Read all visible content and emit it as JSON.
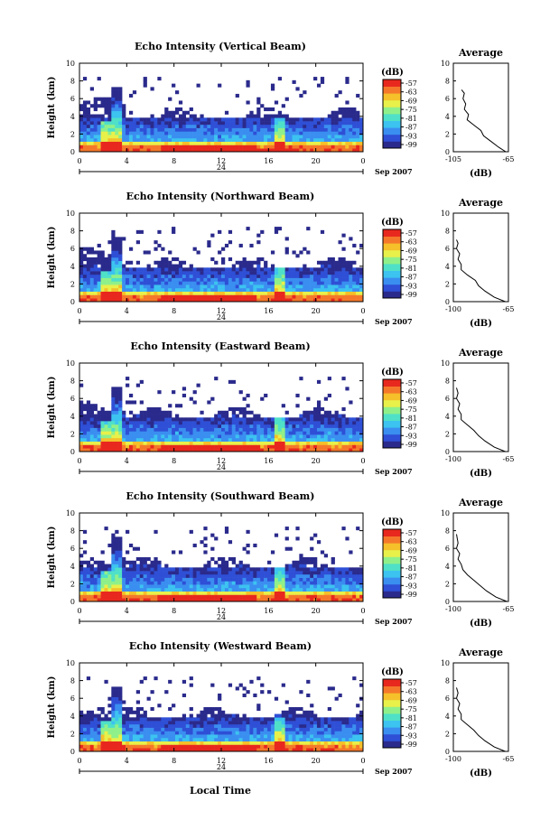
{
  "figure": {
    "xlabel": "Local Time",
    "date_label": "Sep 2007",
    "day_label": "24",
    "ylabel": "Height (km)",
    "unit_label": "(dB)",
    "avg_title": "Average",
    "avg_xlabel": "(dB)"
  },
  "colors": {
    "scale": [
      "#2a2a8c",
      "#2e4fd6",
      "#3a8ef0",
      "#3cc3f0",
      "#4fe0c8",
      "#8ff08a",
      "#e8f04a",
      "#f5c02a",
      "#f5782a",
      "#e8281e"
    ]
  },
  "chart_data": [
    {
      "type": "heatmap",
      "title": "Echo Intensity (Vertical Beam)",
      "x_ticks": [
        "0",
        "4",
        "8",
        "12",
        "16",
        "20",
        "0"
      ],
      "y_ticks": [
        "0",
        "2",
        "4",
        "6",
        "8",
        "10"
      ],
      "xlim": [
        0,
        24
      ],
      "ylim": [
        0,
        10
      ],
      "colorbar_ticks": [
        "-57",
        "-63",
        "-69",
        "-75",
        "-81",
        "-87",
        "-93",
        "-99"
      ],
      "average": {
        "title": "Average",
        "x_ticks": [
          "-105",
          "-65"
        ],
        "y_ticks": [
          "0",
          "2",
          "4",
          "6",
          "8",
          "10"
        ],
        "xlim": [
          -105,
          -65
        ],
        "profile": [
          [
            -67,
            0
          ],
          [
            -72,
            0.5
          ],
          [
            -78,
            1.2
          ],
          [
            -83,
            1.8
          ],
          [
            -85,
            2.4
          ],
          [
            -90,
            3.0
          ],
          [
            -95,
            3.6
          ],
          [
            -94,
            4.2
          ],
          [
            -97,
            4.8
          ],
          [
            -96,
            5.4
          ],
          [
            -98,
            6.0
          ],
          [
            -97,
            6.6
          ],
          [
            -99,
            7.0
          ]
        ]
      }
    },
    {
      "type": "heatmap",
      "title": "Echo Intensity (Northward Beam)",
      "x_ticks": [
        "0",
        "4",
        "8",
        "12",
        "16",
        "20",
        "0"
      ],
      "y_ticks": [
        "0",
        "2",
        "4",
        "6",
        "8",
        "10"
      ],
      "xlim": [
        0,
        24
      ],
      "ylim": [
        0,
        10
      ],
      "colorbar_ticks": [
        "-57",
        "-63",
        "-69",
        "-75",
        "-81",
        "-87",
        "-93",
        "-99"
      ],
      "average": {
        "title": "Average",
        "x_ticks": [
          "-100",
          "-65"
        ],
        "y_ticks": [
          "0",
          "2",
          "4",
          "6",
          "8",
          "10"
        ],
        "xlim": [
          -100,
          -65
        ],
        "profile": [
          [
            -67,
            0
          ],
          [
            -74,
            0.5
          ],
          [
            -80,
            1.2
          ],
          [
            -84,
            1.8
          ],
          [
            -86,
            2.4
          ],
          [
            -91,
            3.0
          ],
          [
            -95,
            3.6
          ],
          [
            -95,
            4.2
          ],
          [
            -97,
            4.8
          ],
          [
            -96,
            5.4
          ],
          [
            -98,
            6.0
          ],
          [
            -97,
            6.6
          ],
          [
            -98,
            7.0
          ]
        ]
      }
    },
    {
      "type": "heatmap",
      "title": "Echo Intensity (Eastward Beam)",
      "x_ticks": [
        "0",
        "4",
        "8",
        "12",
        "16",
        "20",
        "0"
      ],
      "y_ticks": [
        "0",
        "2",
        "4",
        "6",
        "8",
        "10"
      ],
      "xlim": [
        0,
        24
      ],
      "ylim": [
        0,
        10
      ],
      "colorbar_ticks": [
        "-57",
        "-63",
        "-69",
        "-75",
        "-81",
        "-87",
        "-93",
        "-99"
      ],
      "average": {
        "title": "Average",
        "x_ticks": [
          "-100",
          "-65"
        ],
        "y_ticks": [
          "0",
          "2",
          "4",
          "6",
          "8",
          "10"
        ],
        "xlim": [
          -100,
          -65
        ],
        "profile": [
          [
            -67,
            0
          ],
          [
            -74,
            0.5
          ],
          [
            -80,
            1.2
          ],
          [
            -84,
            1.8
          ],
          [
            -87,
            2.4
          ],
          [
            -91,
            3.0
          ],
          [
            -95,
            3.6
          ],
          [
            -95,
            4.2
          ],
          [
            -97,
            4.8
          ],
          [
            -96,
            5.4
          ],
          [
            -98,
            6.0
          ],
          [
            -97,
            6.6
          ],
          [
            -98,
            7.2
          ]
        ]
      }
    },
    {
      "type": "heatmap",
      "title": "Echo Intensity (Southward Beam)",
      "x_ticks": [
        "0",
        "4",
        "8",
        "12",
        "16",
        "20",
        "0"
      ],
      "y_ticks": [
        "0",
        "2",
        "4",
        "6",
        "8",
        "10"
      ],
      "xlim": [
        0,
        24
      ],
      "ylim": [
        0,
        10
      ],
      "colorbar_ticks": [
        "-57",
        "-63",
        "-69",
        "-75",
        "-81",
        "-87",
        "-93",
        "-99"
      ],
      "average": {
        "title": "Average",
        "x_ticks": [
          "-100",
          "-65"
        ],
        "y_ticks": [
          "0",
          "2",
          "4",
          "6",
          "8",
          "10"
        ],
        "xlim": [
          -100,
          -65
        ],
        "profile": [
          [
            -66,
            0
          ],
          [
            -73,
            0.5
          ],
          [
            -79,
            1.2
          ],
          [
            -83,
            1.8
          ],
          [
            -87,
            2.4
          ],
          [
            -91,
            3.0
          ],
          [
            -94,
            3.6
          ],
          [
            -95,
            4.2
          ],
          [
            -97,
            4.8
          ],
          [
            -96,
            5.4
          ],
          [
            -98,
            6.0
          ],
          [
            -97,
            6.6
          ],
          [
            -98,
            7.6
          ]
        ]
      }
    },
    {
      "type": "heatmap",
      "title": "Echo Intensity (Westward Beam)",
      "x_ticks": [
        "0",
        "4",
        "8",
        "12",
        "16",
        "20",
        "0"
      ],
      "y_ticks": [
        "0",
        "2",
        "4",
        "6",
        "8",
        "10"
      ],
      "xlim": [
        0,
        24
      ],
      "ylim": [
        0,
        10
      ],
      "colorbar_ticks": [
        "-57",
        "-63",
        "-69",
        "-75",
        "-81",
        "-87",
        "-93",
        "-99"
      ],
      "average": {
        "title": "Average",
        "x_ticks": [
          "-100",
          "-65"
        ],
        "y_ticks": [
          "0",
          "2",
          "4",
          "6",
          "8",
          "10"
        ],
        "xlim": [
          -100,
          -65
        ],
        "profile": [
          [
            -67,
            0
          ],
          [
            -74,
            0.5
          ],
          [
            -80,
            1.2
          ],
          [
            -84,
            1.8
          ],
          [
            -87,
            2.4
          ],
          [
            -91,
            3.0
          ],
          [
            -95,
            3.6
          ],
          [
            -95,
            4.2
          ],
          [
            -97,
            4.8
          ],
          [
            -96,
            5.4
          ],
          [
            -98,
            6.0
          ],
          [
            -97,
            6.6
          ],
          [
            -98,
            7.2
          ]
        ]
      }
    }
  ]
}
